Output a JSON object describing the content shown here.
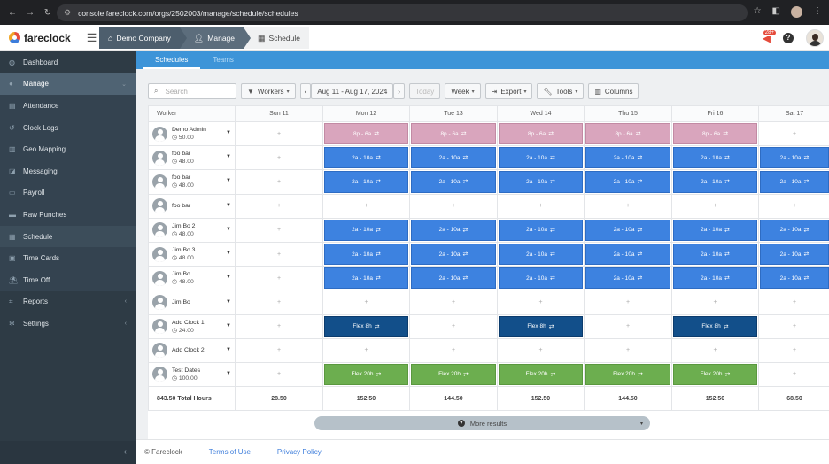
{
  "browser": {
    "url": "console.fareclock.com/orgs/2502003/manage/schedule/schedules",
    "icons": [
      "back-icon",
      "forward-icon",
      "reload-icon",
      "star-icon",
      "extensions-icon",
      "menu-icon"
    ]
  },
  "app": {
    "logo_text": "fareclock",
    "breadcrumbs": [
      "Demo Company",
      "Manage",
      "Schedule"
    ],
    "notification_count": "28+",
    "help_label": "?"
  },
  "sidebar": {
    "items": [
      {
        "label": "Dashboard",
        "icon": "dashboard-icon"
      },
      {
        "label": "Manage",
        "icon": "person-icon"
      },
      {
        "label": "Attendance",
        "icon": "list-icon"
      },
      {
        "label": "Clock Logs",
        "icon": "history-icon"
      },
      {
        "label": "Geo Mapping",
        "icon": "map-icon"
      },
      {
        "label": "Messaging",
        "icon": "chat-icon"
      },
      {
        "label": "Payroll",
        "icon": "payroll-icon"
      },
      {
        "label": "Raw Punches",
        "icon": "punch-icon"
      },
      {
        "label": "Schedule",
        "icon": "calendar-icon"
      },
      {
        "label": "Time Cards",
        "icon": "card-icon"
      },
      {
        "label": "Time Off",
        "icon": "beach-icon"
      },
      {
        "label": "Reports",
        "icon": "chart-icon"
      },
      {
        "label": "Settings",
        "icon": "gear-icon"
      }
    ],
    "collapse_label": "‹"
  },
  "tabs": [
    "Schedules",
    "Teams"
  ],
  "toolbar": {
    "search_placeholder": "Search",
    "workers_label": "Workers",
    "date_range": "Aug 11 - Aug 17, 2024",
    "today_label": "Today",
    "week_label": "Week",
    "export_label": "Export",
    "tools_label": "Tools",
    "columns_label": "Columns"
  },
  "grid": {
    "worker_header": "Worker",
    "days": [
      "Sun 11",
      "Mon 12",
      "Tue 13",
      "Wed 14",
      "Thu 15",
      "Fri 16",
      "Sat 17"
    ],
    "today_index": 2,
    "plus_label": "+",
    "rows": [
      {
        "name": "Demo Admin",
        "hours": "50.00",
        "cells": [
          "+",
          "8p - 6a",
          "8p - 6a",
          "8p - 6a",
          "8p - 6a",
          "8p - 6a",
          "+"
        ],
        "kind": "pink"
      },
      {
        "name": "foo bar",
        "hours": "48.00",
        "cells": [
          "+",
          "2a - 10a",
          "2a - 10a",
          "2a - 10a",
          "2a - 10a",
          "2a - 10a",
          "2a - 10a"
        ],
        "kind": "blue"
      },
      {
        "name": "foo bar",
        "hours": "48.00",
        "cells": [
          "+",
          "2a - 10a",
          "2a - 10a",
          "2a - 10a",
          "2a - 10a",
          "2a - 10a",
          "2a - 10a"
        ],
        "kind": "blue"
      },
      {
        "name": "foo bar",
        "hours": "",
        "cells": [
          "+",
          "+",
          "+",
          "+",
          "+",
          "+",
          "+"
        ],
        "kind": "none"
      },
      {
        "name": "Jim Bo 2",
        "hours": "48.00",
        "cells": [
          "+",
          "2a - 10a",
          "2a - 10a",
          "2a - 10a",
          "2a - 10a",
          "2a - 10a",
          "2a - 10a"
        ],
        "kind": "blue"
      },
      {
        "name": "Jim Bo 3",
        "hours": "48.00",
        "cells": [
          "+",
          "2a - 10a",
          "2a - 10a",
          "2a - 10a",
          "2a - 10a",
          "2a - 10a",
          "2a - 10a"
        ],
        "kind": "blue"
      },
      {
        "name": "Jim Bo",
        "hours": "48.00",
        "cells": [
          "+",
          "2a - 10a",
          "2a - 10a",
          "2a - 10a",
          "2a - 10a",
          "2a - 10a",
          "2a - 10a"
        ],
        "kind": "blue"
      },
      {
        "name": "Jim Bo",
        "hours": "",
        "cells": [
          "+",
          "+",
          "+",
          "+",
          "+",
          "+",
          "+"
        ],
        "kind": "none"
      },
      {
        "name": "Add Clock 1",
        "hours": "24.00",
        "cells": [
          "+",
          "Flex 8h",
          "+",
          "Flex 8h",
          "+",
          "Flex 8h",
          "+"
        ],
        "kind": "navy"
      },
      {
        "name": "Add Clock 2",
        "hours": "",
        "cells": [
          "+",
          "+",
          "+",
          "+",
          "+",
          "+",
          "+"
        ],
        "kind": "none"
      },
      {
        "name": "Test Dates",
        "hours": "100.00",
        "cells": [
          "+",
          "Flex 20h",
          "Flex 20h",
          "Flex 20h",
          "Flex 20h",
          "Flex 20h",
          "+"
        ],
        "kind": "green"
      }
    ],
    "totals_label": "843.50 Total Hours",
    "totals": [
      "28.50",
      "152.50",
      "144.50",
      "152.50",
      "144.50",
      "152.50",
      "68.50"
    ]
  },
  "more_results_label": "More results",
  "footer": {
    "copyright": "© Fareclock",
    "terms": "Terms of Use",
    "privacy": "Privacy Policy"
  },
  "colors": {
    "pink_shift": "#d9a5bd",
    "blue_shift": "#3d82e0",
    "navy_shift": "#124f8a",
    "green_shift": "#6cae4f",
    "tab_bar": "#3d94d8",
    "sidebar": "#2e3b45"
  }
}
